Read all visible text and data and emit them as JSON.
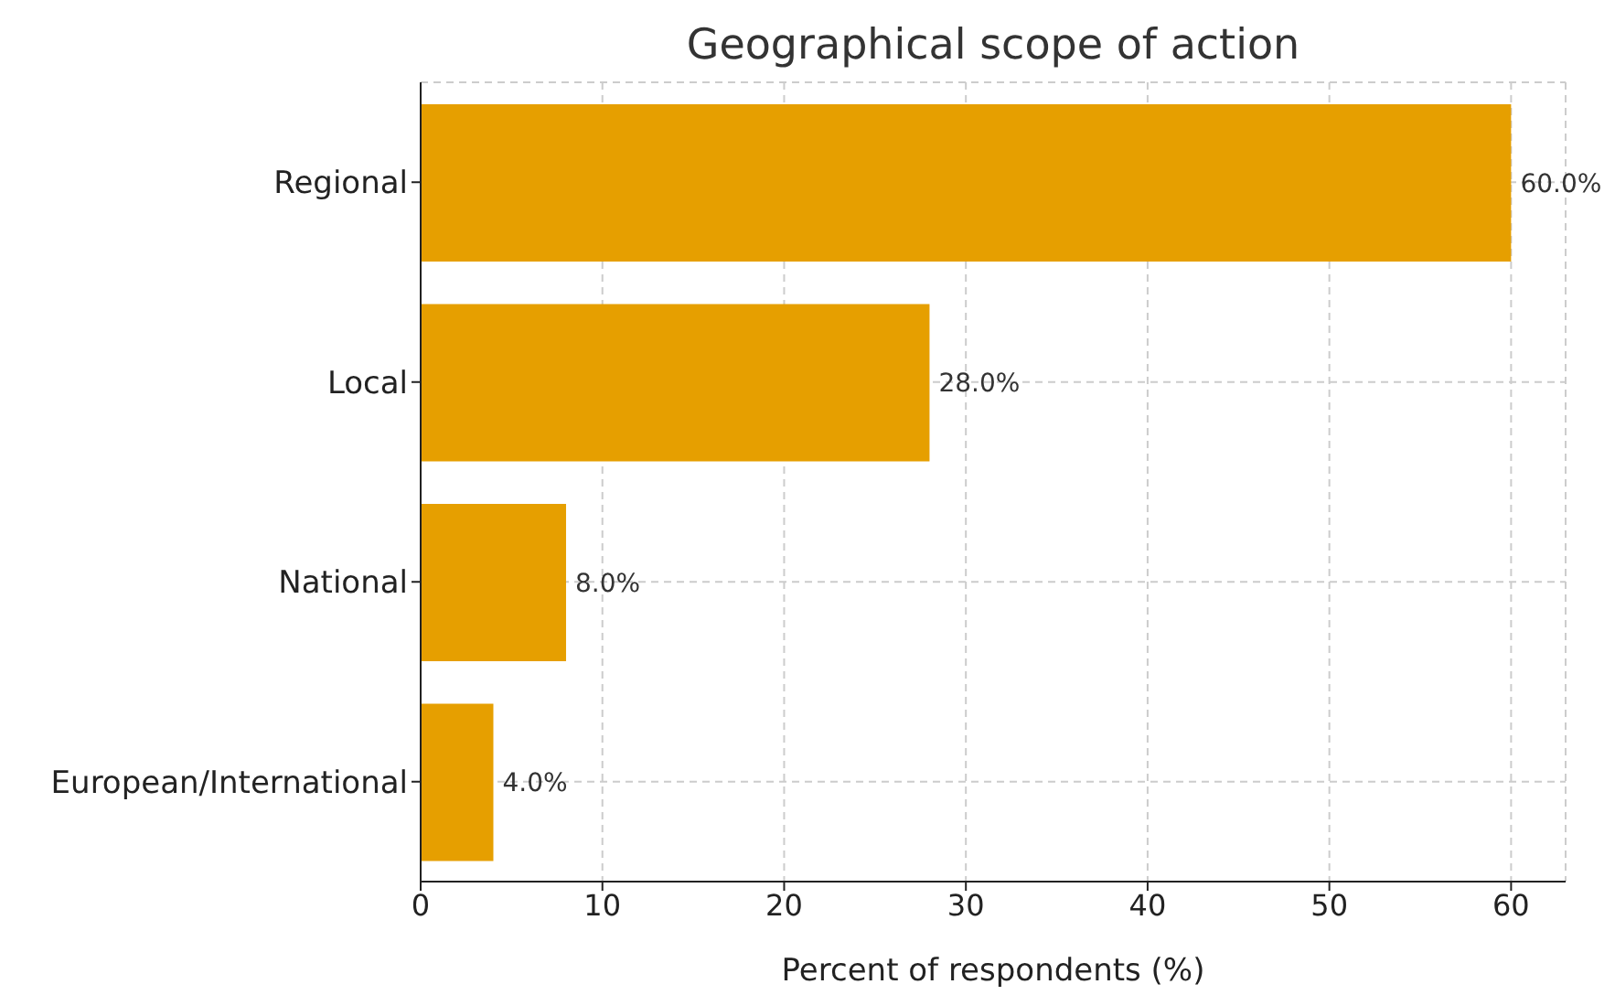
{
  "chart_data": {
    "type": "bar",
    "orientation": "horizontal",
    "title": "Geographical scope of action",
    "xlabel": "Percent of respondents (%)",
    "categories": [
      "Regional",
      "Local",
      "National",
      "European/International"
    ],
    "values": [
      60,
      28,
      8,
      4
    ],
    "value_labels": [
      "60.0%",
      "28.0%",
      "8.0%",
      "4.0%"
    ],
    "color": "#e69f00",
    "xlim": [
      0,
      63
    ],
    "xticks": [
      0,
      10,
      20,
      30,
      40,
      50,
      60
    ],
    "grid": true
  }
}
